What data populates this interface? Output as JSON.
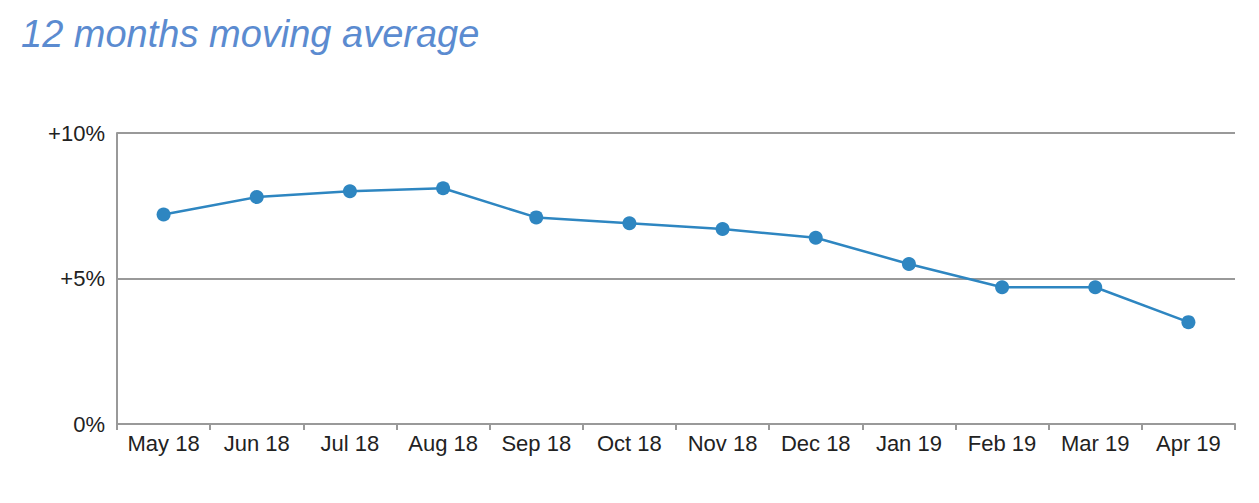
{
  "chart_data": {
    "type": "line",
    "title": "12 months moving average",
    "categories": [
      "May 18",
      "Jun 18",
      "Jul 18",
      "Aug 18",
      "Sep 18",
      "Oct 18",
      "Nov 18",
      "Dec 18",
      "Jan 19",
      "Feb 19",
      "Mar 19",
      "Apr 19"
    ],
    "values": [
      7.2,
      7.8,
      8.0,
      8.1,
      7.1,
      6.9,
      6.7,
      6.4,
      5.5,
      4.7,
      4.7,
      3.5
    ],
    "color": "#2e86c1",
    "ylim": [
      0,
      10
    ],
    "yticks": [
      {
        "value": 0,
        "label": "0%"
      },
      {
        "value": 5,
        "label": "+5%"
      },
      {
        "value": 10,
        "label": "+10%"
      }
    ],
    "grid": true,
    "marker": "circle"
  }
}
